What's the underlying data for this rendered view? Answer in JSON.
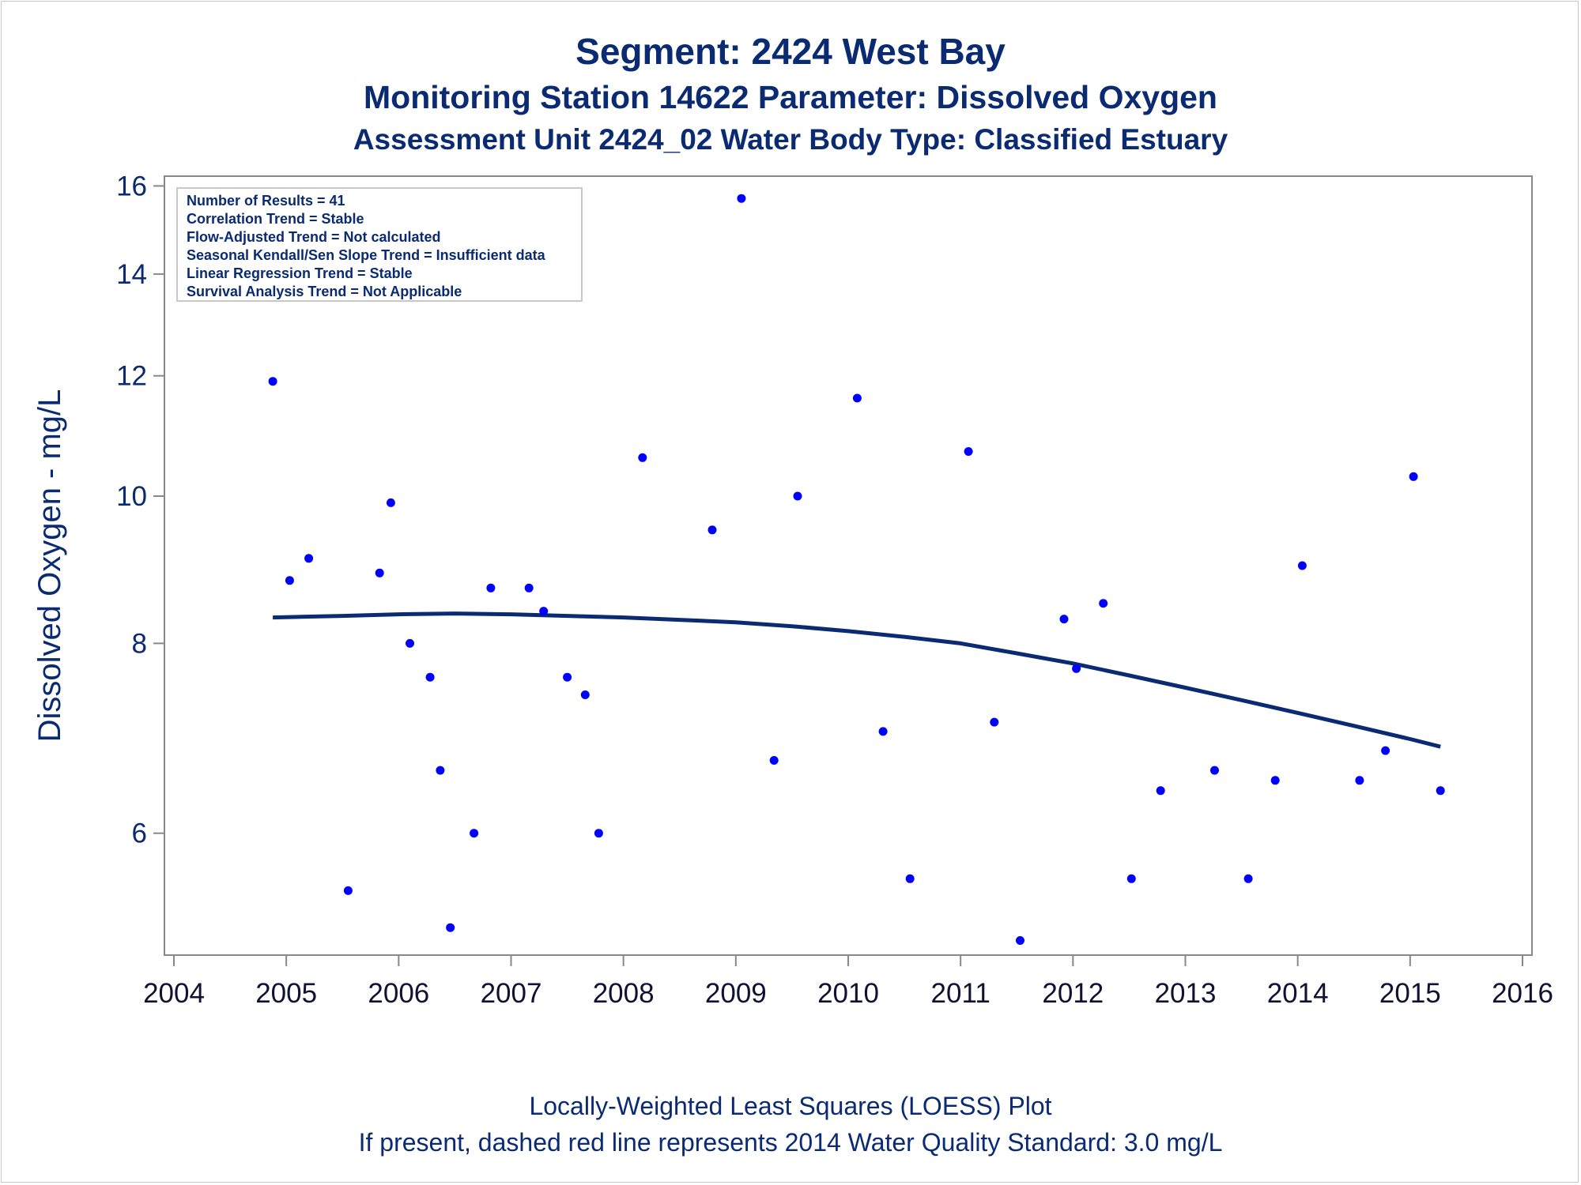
{
  "titles": {
    "line1": "Segment: 2424  West Bay",
    "line2": "Monitoring Station 14622 Parameter: Dissolved Oxygen",
    "line3": "Assessment Unit 2424_02   Water Body Type: Classified Estuary"
  },
  "footnotes": {
    "line1": "Locally-Weighted Least Squares (LOESS) Plot",
    "line2": "If present, dashed red line represents 2014 Water Quality Standard: 3.0 mg/L"
  },
  "stats_box": [
    "Number of Results = 41",
    "Correlation Trend = Stable",
    "Flow-Adjusted Trend = Not calculated",
    "Seasonal Kendall/Sen Slope Trend = Insufficient data",
    "Linear Regression Trend = Stable",
    "Survival Analysis Trend = Not Applicable"
  ],
  "colors": {
    "points": "#0000ff",
    "loess": "#0a2a72",
    "text": "#0a2a72",
    "axis": "#888888"
  },
  "chart_data": {
    "type": "scatter",
    "ylabel": "Dissolved Oxygen - mg/L",
    "xlabel": "",
    "y_scale": "log",
    "xlim": [
      2004,
      2016
    ],
    "ylim": [
      5.0,
      16.2
    ],
    "xticks": [
      "2004",
      "2005",
      "2006",
      "2007",
      "2008",
      "2009",
      "2010",
      "2011",
      "2012",
      "2013",
      "2014",
      "2015",
      "2016"
    ],
    "yticks": [
      "6",
      "8",
      "10",
      "12",
      "14",
      "16"
    ],
    "points": [
      {
        "x": 2004.88,
        "y": 11.9
      },
      {
        "x": 2005.03,
        "y": 8.8
      },
      {
        "x": 2005.2,
        "y": 9.1
      },
      {
        "x": 2005.55,
        "y": 5.5
      },
      {
        "x": 2005.83,
        "y": 8.9
      },
      {
        "x": 2005.93,
        "y": 9.9
      },
      {
        "x": 2006.1,
        "y": 8.0
      },
      {
        "x": 2006.28,
        "y": 7.6
      },
      {
        "x": 2006.37,
        "y": 6.6
      },
      {
        "x": 2006.46,
        "y": 5.2
      },
      {
        "x": 2006.67,
        "y": 6.0
      },
      {
        "x": 2006.82,
        "y": 8.7
      },
      {
        "x": 2007.16,
        "y": 8.7
      },
      {
        "x": 2007.29,
        "y": 8.4
      },
      {
        "x": 2007.5,
        "y": 7.6
      },
      {
        "x": 2007.66,
        "y": 7.4
      },
      {
        "x": 2007.78,
        "y": 6.0
      },
      {
        "x": 2008.17,
        "y": 10.6
      },
      {
        "x": 2008.79,
        "y": 9.5
      },
      {
        "x": 2009.05,
        "y": 15.7
      },
      {
        "x": 2009.34,
        "y": 6.7
      },
      {
        "x": 2009.55,
        "y": 10.0
      },
      {
        "x": 2010.08,
        "y": 11.6
      },
      {
        "x": 2010.31,
        "y": 7.0
      },
      {
        "x": 2010.55,
        "y": 5.6
      },
      {
        "x": 2011.07,
        "y": 10.7
      },
      {
        "x": 2011.3,
        "y": 7.1
      },
      {
        "x": 2011.53,
        "y": 5.1
      },
      {
        "x": 2011.92,
        "y": 8.3
      },
      {
        "x": 2012.03,
        "y": 7.7
      },
      {
        "x": 2012.27,
        "y": 8.5
      },
      {
        "x": 2012.52,
        "y": 5.6
      },
      {
        "x": 2012.78,
        "y": 6.4
      },
      {
        "x": 2013.26,
        "y": 6.6
      },
      {
        "x": 2013.56,
        "y": 5.6
      },
      {
        "x": 2013.8,
        "y": 6.5
      },
      {
        "x": 2014.04,
        "y": 9.0
      },
      {
        "x": 2014.55,
        "y": 6.5
      },
      {
        "x": 2014.78,
        "y": 6.8
      },
      {
        "x": 2015.03,
        "y": 10.3
      },
      {
        "x": 2015.27,
        "y": 6.4
      }
    ],
    "loess": {
      "name": "LOESS",
      "x": [
        2004.88,
        2005.5,
        2006.0,
        2006.5,
        2007.0,
        2007.5,
        2008.0,
        2008.5,
        2009.0,
        2009.5,
        2010.0,
        2010.5,
        2011.0,
        2011.5,
        2012.0,
        2012.5,
        2013.0,
        2013.5,
        2014.0,
        2014.5,
        2015.0,
        2015.27
      ],
      "y": [
        8.32,
        8.34,
        8.36,
        8.37,
        8.36,
        8.34,
        8.32,
        8.29,
        8.26,
        8.21,
        8.15,
        8.08,
        8.0,
        7.88,
        7.76,
        7.62,
        7.48,
        7.34,
        7.2,
        7.06,
        6.92,
        6.84
      ]
    }
  }
}
